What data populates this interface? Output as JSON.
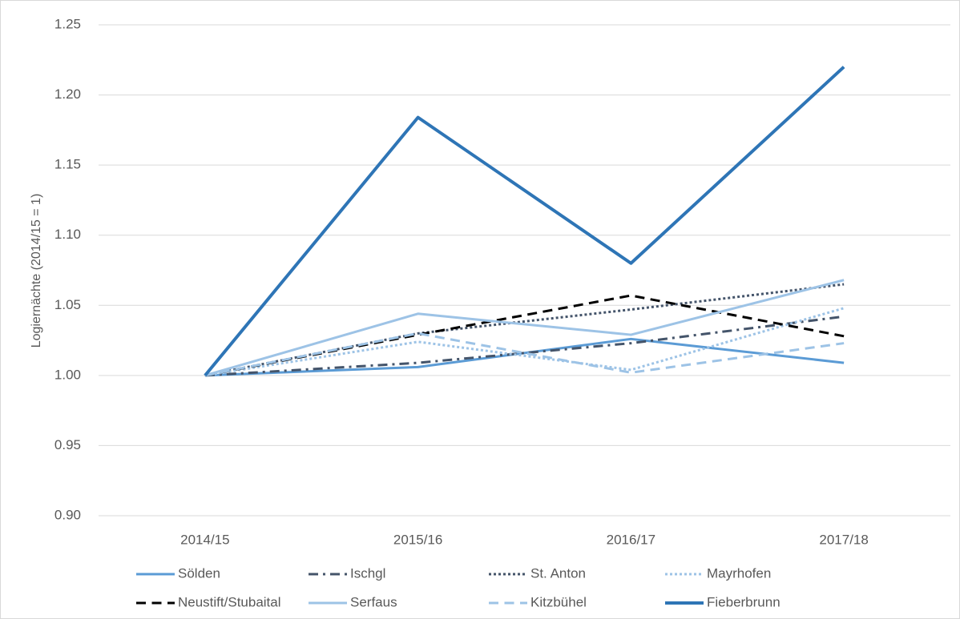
{
  "chart_data": {
    "type": "line",
    "y_label": "Logiernächte (2014/15 = 1)",
    "categories": [
      "2014/15",
      "2015/16",
      "2016/17",
      "2017/18"
    ],
    "ylim": [
      0.9,
      1.25
    ],
    "yticks": [
      {
        "value": 0.9,
        "label": "0.90"
      },
      0.95,
      {
        "value": 1.0,
        "label": "1.00"
      },
      1.05,
      {
        "value": 1.1,
        "label": "1.10"
      },
      1.15,
      {
        "value": 1.2,
        "label": "1.20"
      },
      1.25
    ],
    "grid": true,
    "legend": "bottom",
    "series": [
      {
        "name": "Sölden",
        "color": "#5b9bd5",
        "style": "solid",
        "linewidth": 3,
        "values": [
          1.0,
          1.006,
          1.026,
          1.009
        ]
      },
      {
        "name": "Ischgl",
        "color": "#44546a",
        "style": "dashdot",
        "linewidth": 3,
        "values": [
          1.0,
          1.009,
          1.023,
          1.042
        ]
      },
      {
        "name": "St. Anton",
        "color": "#44546a",
        "style": "dot",
        "linewidth": 3,
        "values": [
          1.0,
          1.03,
          1.047,
          1.065
        ]
      },
      {
        "name": "Mayrhofen",
        "color": "#9dc3e6",
        "style": "dot",
        "linewidth": 3,
        "values": [
          1.0,
          1.024,
          1.004,
          1.048
        ]
      },
      {
        "name": "Neustift/Stubaital",
        "color": "#000000",
        "style": "dash",
        "linewidth": 3,
        "values": [
          1.0,
          1.029,
          1.057,
          1.028
        ]
      },
      {
        "name": "Serfaus",
        "color": "#9dc3e6",
        "style": "solid",
        "linewidth": 3,
        "values": [
          1.0,
          1.044,
          1.029,
          1.068
        ]
      },
      {
        "name": "Kitzbühel",
        "color": "#9dc3e6",
        "style": "dash",
        "linewidth": 3,
        "values": [
          1.0,
          1.03,
          1.002,
          1.023
        ]
      },
      {
        "name": "Fieberbrunn",
        "color": "#2e75b6",
        "style": "solid",
        "linewidth": 4,
        "values": [
          1.0,
          1.184,
          1.08,
          1.22
        ]
      }
    ]
  }
}
